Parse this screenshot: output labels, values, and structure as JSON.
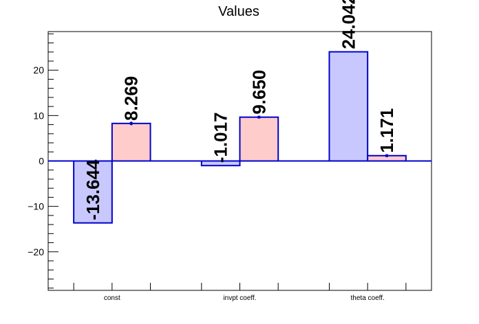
{
  "chart_data": {
    "type": "bar",
    "title": "Values",
    "xlabel": "",
    "ylabel": "",
    "ylim": [
      -28.5,
      28.5
    ],
    "categories": [
      "const",
      "invpt coeff.",
      "theta coeff."
    ],
    "series": [
      {
        "values": [
          -13.644,
          -1.017,
          24.042
        ],
        "labels": [
          "-13.644",
          "-1.017",
          "24.042"
        ],
        "fill": "#c8c8ff",
        "stroke": "#0000cc"
      },
      {
        "values": [
          8.269,
          9.65,
          1.171
        ],
        "labels": [
          "8.269",
          "9.650",
          "1.171"
        ],
        "errors": [
          0.4,
          0.2,
          0.3
        ],
        "fill": "#ffcccc",
        "stroke": "#0000cc"
      }
    ],
    "y_ticks": [
      -20,
      -10,
      0,
      10,
      20
    ],
    "y_tick_labels": [
      "−20",
      "−10",
      "0",
      "10",
      "20"
    ],
    "grid": false,
    "zero_line": true
  }
}
